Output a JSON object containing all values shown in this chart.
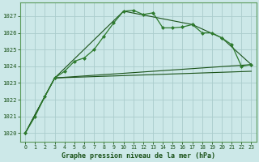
{
  "title": "Graphe pression niveau de la mer (hPa)",
  "bg_color": "#cce8e8",
  "grid_color": "#aacccc",
  "line_main_color": "#2d7a2d",
  "line_smooth_color": "#1a5218",
  "x_ticks": [
    0,
    1,
    2,
    3,
    4,
    5,
    6,
    7,
    8,
    9,
    10,
    11,
    12,
    13,
    14,
    15,
    16,
    17,
    18,
    19,
    20,
    21,
    22,
    23
  ],
  "ylim": [
    1019.5,
    1027.8
  ],
  "yticks": [
    1020,
    1021,
    1022,
    1023,
    1024,
    1025,
    1026,
    1027
  ],
  "line1_x": [
    0,
    1,
    2,
    3,
    4,
    5,
    6,
    7,
    8,
    9,
    10,
    11,
    12,
    13,
    14,
    15,
    16,
    17,
    18,
    19,
    20,
    21,
    22,
    23
  ],
  "line1_y": [
    1020.0,
    1021.0,
    1022.2,
    1023.3,
    1023.7,
    1024.3,
    1024.5,
    1025.0,
    1025.8,
    1026.6,
    1027.3,
    1027.35,
    1027.1,
    1027.2,
    1026.3,
    1026.3,
    1026.35,
    1026.5,
    1026.0,
    1026.0,
    1025.7,
    1025.3,
    1024.0,
    1024.1
  ],
  "line2_x": [
    0,
    3,
    10,
    17,
    20,
    23
  ],
  "line2_y": [
    1020.0,
    1023.3,
    1027.3,
    1026.5,
    1025.7,
    1024.1
  ],
  "line3_x": [
    0,
    3,
    23
  ],
  "line3_y": [
    1020.0,
    1023.3,
    1024.1
  ],
  "line4_x": [
    0,
    3,
    23
  ],
  "line4_y": [
    1020.0,
    1023.3,
    1023.7
  ]
}
